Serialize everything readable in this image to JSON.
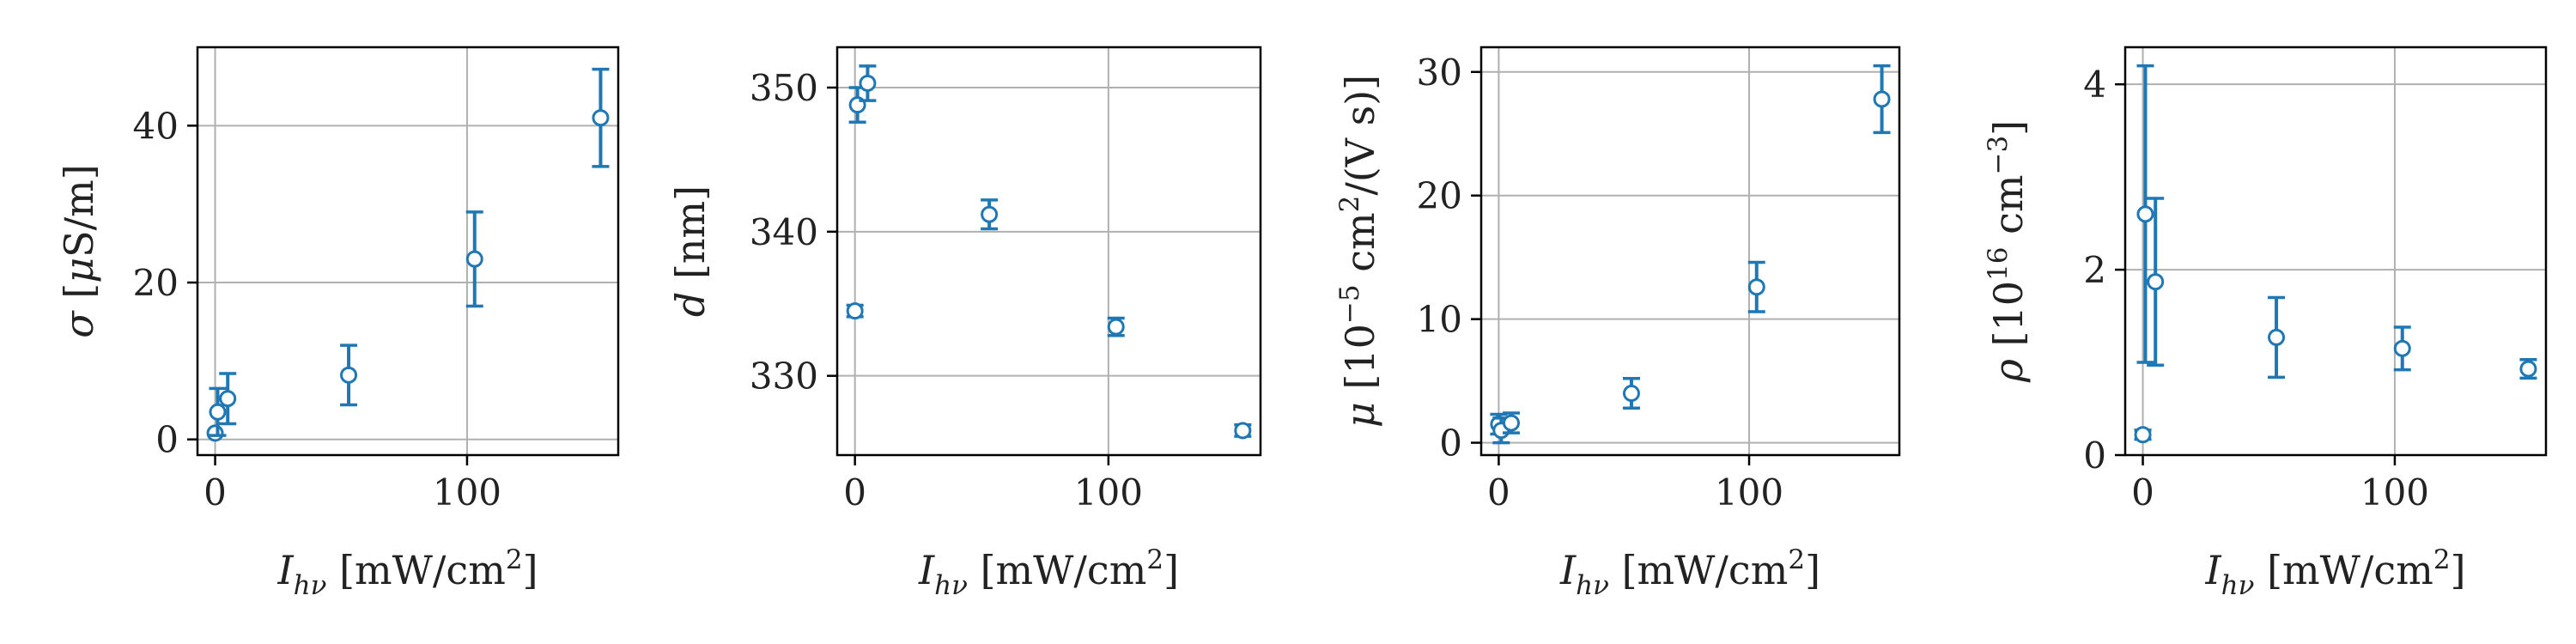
{
  "colors": {
    "series": "#1f77b4"
  },
  "chart_data": [
    {
      "type": "scatter",
      "xlabel_parts": [
        "I",
        "hν",
        " [mW/cm",
        "2",
        "]"
      ],
      "ylabel_parts": [
        "σ",
        " [",
        "μ",
        "S/m]"
      ],
      "xlim": [
        -7,
        160
      ],
      "ylim": [
        -2,
        50
      ],
      "xticks": [
        0,
        100
      ],
      "yticks": [
        0,
        20,
        40
      ],
      "grid": true,
      "points": [
        {
          "x": 0,
          "y": 0.8,
          "err": 0
        },
        {
          "x": 1,
          "y": 3.5,
          "err": 3.0
        },
        {
          "x": 5,
          "y": 5.2,
          "err": 3.2
        },
        {
          "x": 53,
          "y": 8.2,
          "err": 3.8
        },
        {
          "x": 103,
          "y": 23.0,
          "err": 6.0
        },
        {
          "x": 153,
          "y": 41.0,
          "err": 6.2
        }
      ]
    },
    {
      "type": "scatter",
      "xlabel_parts": [
        "I",
        "hν",
        " [mW/cm",
        "2",
        "]"
      ],
      "ylabel_parts": [
        "d",
        " [nm]"
      ],
      "xlim": [
        -7,
        160
      ],
      "ylim": [
        324.5,
        352.8
      ],
      "xticks": [
        0,
        100
      ],
      "yticks": [
        330,
        340,
        350
      ],
      "grid": true,
      "points": [
        {
          "x": 0,
          "y": 334.5,
          "err": 0.4
        },
        {
          "x": 1,
          "y": 348.8,
          "err": 1.2
        },
        {
          "x": 5,
          "y": 350.3,
          "err": 1.2
        },
        {
          "x": 53,
          "y": 341.2,
          "err": 1.0
        },
        {
          "x": 103,
          "y": 333.4,
          "err": 0.6
        },
        {
          "x": 153,
          "y": 326.2,
          "err": 0.4
        }
      ]
    },
    {
      "type": "scatter",
      "xlabel_parts": [
        "I",
        "hν",
        " [mW/cm",
        "2",
        "]"
      ],
      "ylabel_parts": [
        "μ",
        " [10",
        "−5",
        " cm",
        "2",
        "/(V s)]"
      ],
      "xlim": [
        -7,
        160
      ],
      "ylim": [
        -1,
        32
      ],
      "xticks": [
        0,
        100
      ],
      "yticks": [
        0,
        10,
        20,
        30
      ],
      "grid": true,
      "points": [
        {
          "x": 0,
          "y": 1.5,
          "err": 0.8
        },
        {
          "x": 1,
          "y": 1.0,
          "err": 1.0
        },
        {
          "x": 5,
          "y": 1.6,
          "err": 0.8
        },
        {
          "x": 53,
          "y": 4.0,
          "err": 1.2
        },
        {
          "x": 103,
          "y": 12.6,
          "err": 2.0
        },
        {
          "x": 153,
          "y": 27.8,
          "err": 2.7
        }
      ]
    },
    {
      "type": "scatter",
      "xlabel_parts": [
        "I",
        "hν",
        " [mW/cm",
        "2",
        "]"
      ],
      "ylabel_parts": [
        "ρ",
        " [10",
        "16",
        " cm",
        "−3",
        "]"
      ],
      "xlim": [
        -7,
        160
      ],
      "ylim": [
        0,
        4.4
      ],
      "xticks": [
        0,
        100
      ],
      "yticks": [
        0,
        2,
        4
      ],
      "grid": true,
      "points": [
        {
          "x": 0,
          "y": 0.22,
          "err": 0.05
        },
        {
          "x": 1,
          "y": 2.6,
          "err": 1.6
        },
        {
          "x": 5,
          "y": 1.87,
          "err": 0.9
        },
        {
          "x": 53,
          "y": 1.27,
          "err": 0.43
        },
        {
          "x": 103,
          "y": 1.15,
          "err": 0.23
        },
        {
          "x": 153,
          "y": 0.93,
          "err": 0.1
        }
      ]
    }
  ]
}
